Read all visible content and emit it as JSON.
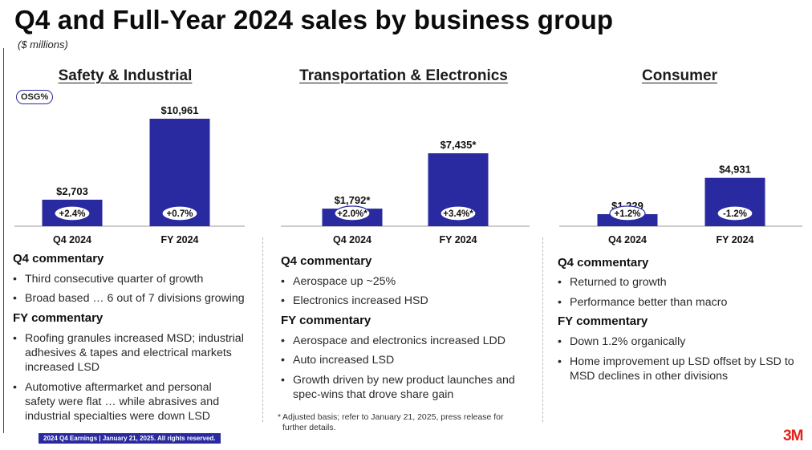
{
  "header": {
    "title": "Q4 and Full-Year 2024 sales by business group",
    "subtitle": "($ millions)"
  },
  "osg_badge": "OSG%",
  "colors": {
    "bar": "#2a2aa0",
    "accent": "#e2231a"
  },
  "chart_data": [
    {
      "type": "bar",
      "title": "Safety & Industrial",
      "categories": [
        "Q4 2024",
        "FY 2024"
      ],
      "values": [
        2703,
        10961
      ],
      "value_labels": [
        "$2,703",
        "$10,961"
      ],
      "growth_labels": [
        "+2.4%",
        "+0.7%"
      ],
      "ylim": [
        0,
        12000
      ]
    },
    {
      "type": "bar",
      "title": "Transportation & Electronics",
      "categories": [
        "Q4 2024",
        "FY 2024"
      ],
      "values": [
        1792,
        7435
      ],
      "value_labels": [
        "$1,792*",
        "$7,435*"
      ],
      "growth_labels": [
        "+2.0%*",
        "+3.4%*"
      ],
      "ylim": [
        0,
        12000
      ]
    },
    {
      "type": "bar",
      "title": "Consumer",
      "categories": [
        "Q4 2024",
        "FY 2024"
      ],
      "values": [
        1229,
        4931
      ],
      "value_labels": [
        "$1,229",
        "$4,931"
      ],
      "growth_labels": [
        "+1.2%",
        "-1.2%"
      ],
      "ylim": [
        0,
        12000
      ]
    }
  ],
  "commentary": [
    {
      "q4_heading": "Q4 commentary",
      "q4_bullets": [
        "Third consecutive quarter of growth",
        "Broad based … 6 out of 7 divisions growing"
      ],
      "fy_heading": "FY commentary",
      "fy_bullets": [
        "Roofing granules increased MSD; industrial adhesives & tapes and electrical markets increased LSD",
        "Automotive aftermarket and personal safety were flat … while abrasives and industrial specialties were down LSD"
      ]
    },
    {
      "q4_heading": "Q4 commentary",
      "q4_bullets": [
        "Aerospace up ~25%",
        "Electronics increased HSD"
      ],
      "fy_heading": "FY commentary",
      "fy_bullets": [
        "Aerospace and electronics increased LDD",
        "Auto increased LSD",
        "Growth driven by new product launches and spec-wins that drove share gain"
      ]
    },
    {
      "q4_heading": "Q4 commentary",
      "q4_bullets": [
        "Returned to growth",
        "Performance better than macro"
      ],
      "fy_heading": "FY commentary",
      "fy_bullets": [
        "Down 1.2% organically",
        "Home improvement up LSD offset by LSD to MSD declines in other divisions"
      ]
    }
  ],
  "footnote": {
    "star": "*",
    "text": "Adjusted basis; refer to January 21, 2025, press release for further details."
  },
  "footer": {
    "text": "2024 Q4 Earnings | January 21, 2025. All rights reserved.",
    "logo": "3M"
  }
}
